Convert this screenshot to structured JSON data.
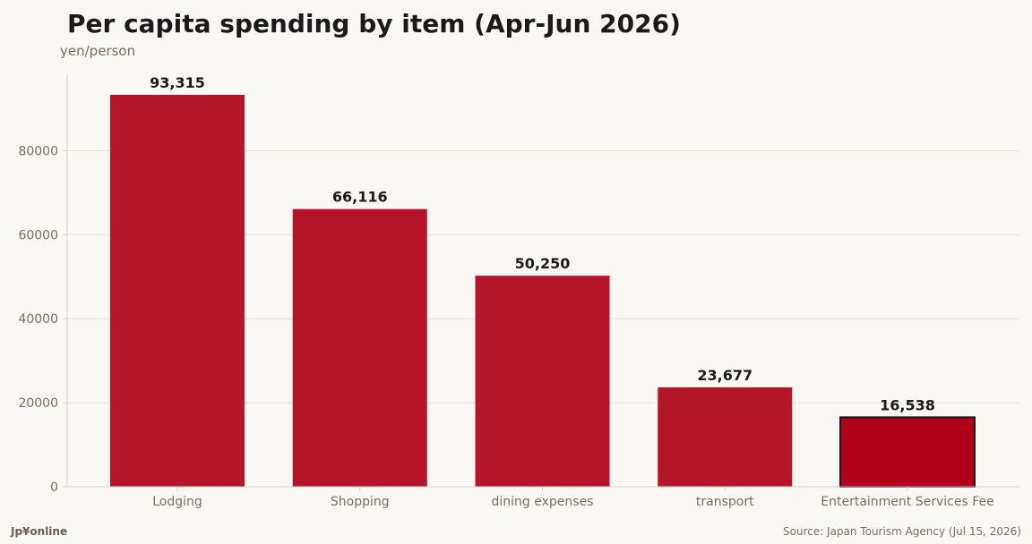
{
  "header": {
    "title": "Per capita spending by item (Apr-Jun 2026)",
    "unit": "yen/person"
  },
  "footer": {
    "brand": "Jp¥online",
    "source": "Source: Japan Tourism Agency (Jul 15, 2026)"
  },
  "colors": {
    "bar": "#b5152b",
    "highlight_bar": "#b0001a",
    "highlight_outline": "#1a1a1a",
    "grid": "#ecdcd6",
    "axis": "#d8cfc6"
  },
  "chart_data": {
    "type": "bar",
    "categories": [
      "Lodging",
      "Shopping",
      "dining expenses",
      "transport",
      "Entertainment Services Fee"
    ],
    "values": [
      93315,
      66116,
      50250,
      23677,
      16538
    ],
    "value_labels": [
      "93,315",
      "66,116",
      "50,250",
      "23,677",
      "16,538"
    ],
    "highlighted_category": "Entertainment Services Fee",
    "title": "Per capita spending by item (Apr-Jun 2026)",
    "ylabel": "yen/person",
    "ylim": [
      0,
      98000
    ],
    "yticks": [
      0,
      20000,
      40000,
      60000,
      80000
    ],
    "grid": "horizontal"
  }
}
